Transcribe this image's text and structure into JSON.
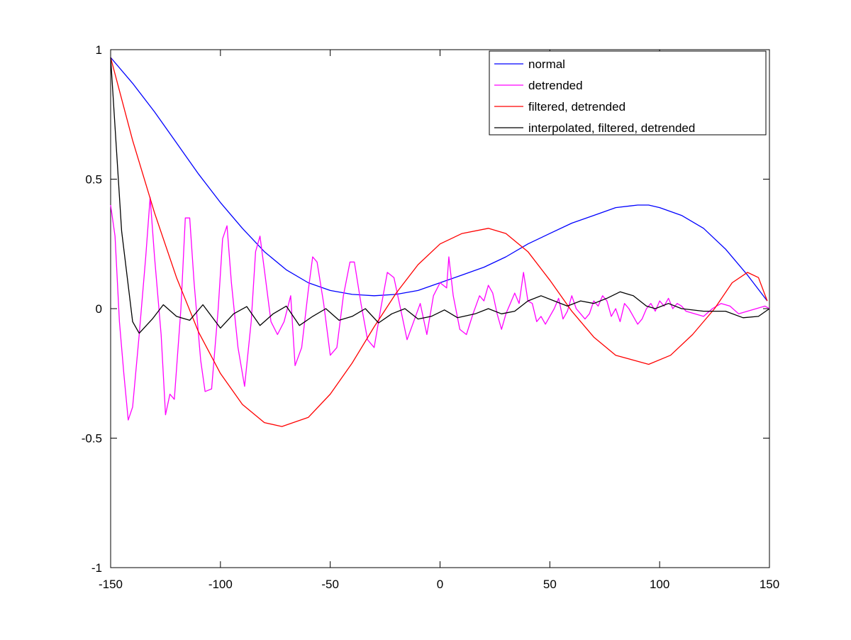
{
  "chart_data": {
    "type": "line",
    "title": "",
    "xlabel": "",
    "ylabel": "",
    "xlim": [
      -150,
      150
    ],
    "ylim": [
      -1,
      1
    ],
    "grid": false,
    "legend_position": "top-right",
    "xticks": [
      -150,
      -100,
      -50,
      0,
      50,
      100,
      150
    ],
    "xtick_labels": [
      "-150",
      "-100",
      "-50",
      "0",
      "50",
      "100",
      "150"
    ],
    "yticks": [
      -1,
      -0.5,
      0,
      0.5,
      1
    ],
    "ytick_labels": [
      "-1",
      "-0.5",
      "0",
      "0.5",
      "1"
    ],
    "series": [
      {
        "name": "normal",
        "color": "#0000ff",
        "x": [
          -150,
          -140,
          -130,
          -120,
          -110,
          -100,
          -90,
          -80,
          -70,
          -60,
          -50,
          -40,
          -30,
          -20,
          -10,
          0,
          10,
          20,
          30,
          40,
          50,
          60,
          70,
          80,
          90,
          95,
          100,
          110,
          120,
          130,
          140,
          149
        ],
        "y": [
          0.97,
          0.87,
          0.76,
          0.64,
          0.52,
          0.41,
          0.31,
          0.22,
          0.15,
          0.1,
          0.07,
          0.055,
          0.05,
          0.055,
          0.07,
          0.1,
          0.13,
          0.16,
          0.2,
          0.25,
          0.29,
          0.33,
          0.36,
          0.39,
          0.4,
          0.4,
          0.39,
          0.36,
          0.31,
          0.23,
          0.13,
          0.03
        ]
      },
      {
        "name": "detrended",
        "color": "#ff00ff",
        "x": [
          -150,
          -148,
          -146,
          -144,
          -142,
          -140,
          -137,
          -134,
          -132,
          -130,
          -127,
          -125,
          -123,
          -121,
          -118,
          -116,
          -114,
          -112,
          -109,
          -107,
          -104,
          -101,
          -99,
          -97,
          -95,
          -92,
          -89,
          -86,
          -84,
          -82,
          -80,
          -77,
          -74,
          -71,
          -68,
          -66,
          -63,
          -60,
          -58,
          -56,
          -53,
          -50,
          -47,
          -44,
          -41,
          -39,
          -36,
          -33,
          -30,
          -27,
          -24,
          -21,
          -18,
          -15,
          -12,
          -9,
          -6,
          -3,
          0,
          3,
          4,
          6,
          9,
          12,
          15,
          18,
          20,
          22,
          24,
          26,
          28,
          30,
          32,
          34,
          36,
          38,
          40,
          42,
          44,
          46,
          48,
          50,
          52,
          54,
          56,
          58,
          60,
          62,
          64,
          66,
          68,
          70,
          72,
          74,
          76,
          78,
          80,
          82,
          84,
          86,
          88,
          90,
          92,
          94,
          96,
          98,
          100,
          102,
          104,
          106,
          108,
          110,
          112,
          116,
          120,
          124,
          128,
          132,
          136,
          140,
          144,
          148,
          150
        ],
        "y": [
          0.4,
          0.28,
          -0.05,
          -0.25,
          -0.43,
          -0.38,
          -0.1,
          0.2,
          0.43,
          0.2,
          -0.1,
          -0.41,
          -0.33,
          -0.35,
          0.0,
          0.35,
          0.35,
          0.1,
          -0.2,
          -0.32,
          -0.31,
          0.0,
          0.27,
          0.32,
          0.1,
          -0.15,
          -0.3,
          -0.05,
          0.22,
          0.28,
          0.15,
          -0.05,
          -0.1,
          -0.05,
          0.05,
          -0.22,
          -0.15,
          0.07,
          0.2,
          0.18,
          0.02,
          -0.18,
          -0.15,
          0.05,
          0.18,
          0.18,
          0.02,
          -0.12,
          -0.15,
          0.0,
          0.14,
          0.12,
          0.0,
          -0.12,
          -0.05,
          0.02,
          -0.1,
          0.05,
          0.1,
          0.08,
          0.2,
          0.05,
          -0.08,
          -0.1,
          -0.02,
          0.05,
          0.03,
          0.09,
          0.06,
          -0.02,
          -0.08,
          -0.02,
          0.02,
          0.06,
          0.02,
          0.14,
          0.03,
          0.02,
          -0.05,
          -0.03,
          -0.06,
          -0.03,
          0.0,
          0.04,
          -0.04,
          -0.01,
          0.05,
          0.0,
          -0.02,
          -0.04,
          -0.02,
          0.03,
          0.01,
          0.05,
          0.03,
          -0.03,
          0.0,
          -0.05,
          0.02,
          0.0,
          -0.03,
          -0.06,
          -0.04,
          0.0,
          0.02,
          -0.01,
          0.03,
          0.01,
          0.04,
          0.0,
          0.02,
          0.01,
          -0.01,
          -0.02,
          -0.03,
          0.0,
          0.02,
          0.01,
          -0.02,
          -0.01,
          0.0,
          0.01,
          0.0
        ]
      },
      {
        "name": "filtered, detrended",
        "color": "#ff0000",
        "x": [
          -150,
          -140,
          -130,
          -120,
          -110,
          -100,
          -90,
          -80,
          -72,
          -60,
          -50,
          -40,
          -30,
          -20,
          -10,
          0,
          10,
          22,
          30,
          40,
          50,
          60,
          70,
          80,
          95,
          105,
          115,
          125,
          133,
          140,
          145,
          149
        ],
        "y": [
          0.97,
          0.65,
          0.37,
          0.12,
          -0.09,
          -0.25,
          -0.37,
          -0.44,
          -0.455,
          -0.42,
          -0.33,
          -0.21,
          -0.07,
          0.06,
          0.17,
          0.25,
          0.29,
          0.31,
          0.29,
          0.22,
          0.11,
          -0.01,
          -0.11,
          -0.18,
          -0.215,
          -0.18,
          -0.1,
          0.0,
          0.1,
          0.14,
          0.12,
          0.03
        ]
      },
      {
        "name": "interpolated, filtered, detrended",
        "color": "#000000",
        "x": [
          -150,
          -145,
          -140,
          -137,
          -131,
          -126,
          -120,
          -114,
          -108,
          -100,
          -94,
          -88,
          -82,
          -76,
          -70,
          -64,
          -58,
          -52,
          -46,
          -40,
          -34,
          -28,
          -22,
          -16,
          -10,
          -4,
          2,
          8,
          16,
          22,
          28,
          34,
          40,
          46,
          52,
          58,
          64,
          70,
          76,
          82,
          88,
          94,
          98,
          104,
          110,
          120,
          130,
          138,
          145,
          150
        ],
        "y": [
          0.97,
          0.3,
          -0.05,
          -0.095,
          -0.04,
          0.015,
          -0.03,
          -0.045,
          0.015,
          -0.075,
          -0.02,
          0.008,
          -0.065,
          -0.02,
          0.01,
          -0.065,
          -0.03,
          0.0,
          -0.045,
          -0.03,
          0.0,
          -0.055,
          -0.02,
          0.0,
          -0.04,
          -0.03,
          -0.005,
          -0.035,
          -0.02,
          0.0,
          -0.02,
          -0.01,
          0.03,
          0.05,
          0.03,
          0.01,
          0.03,
          0.02,
          0.04,
          0.065,
          0.05,
          0.01,
          0.0,
          0.02,
          0.0,
          -0.01,
          -0.01,
          -0.035,
          -0.03,
          0.0
        ]
      }
    ]
  }
}
